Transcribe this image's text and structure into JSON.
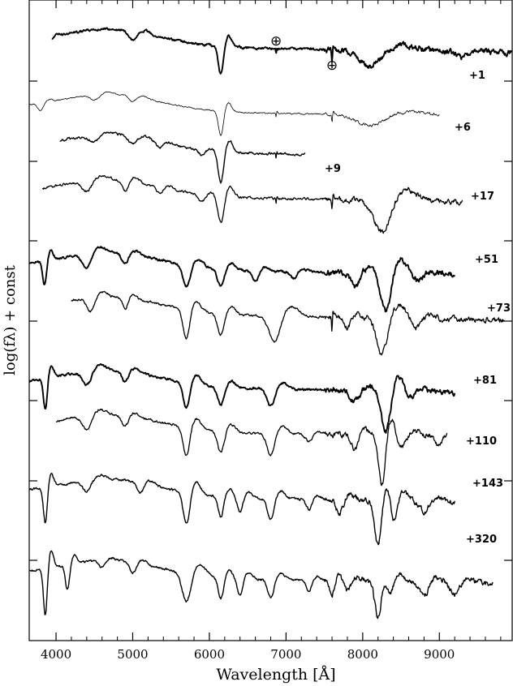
{
  "chart_data": {
    "type": "line",
    "xlabel": "Wavelength [Å]",
    "ylabel": "log(fλ) + const",
    "xlim": [
      3650,
      9950
    ],
    "x_ticks": [
      4000,
      5000,
      6000,
      7000,
      8000,
      9000
    ],
    "y_ticks_count": 7,
    "telluric_marks": [
      {
        "symbol": "⊕",
        "x": 6870
      },
      {
        "symbol": "⊕",
        "x": 7600
      }
    ],
    "series": [
      {
        "name": "+1",
        "xrange": [
          3950,
          9950
        ],
        "offset": 0,
        "lines": [
          [
            6150,
            45,
            160
          ],
          [
            6870,
            6,
            25
          ],
          [
            7600,
            8,
            60
          ],
          [
            3933,
            40,
            20
          ],
          [
            5000,
            70,
            50
          ],
          [
            8100,
            200,
            90
          ],
          [
            9300,
            100,
            30
          ]
        ]
      },
      {
        "name": "+6",
        "xrange": [
          3650,
          9000
        ],
        "offset": 0,
        "lines": [
          [
            6150,
            45,
            140
          ],
          [
            6870,
            6,
            25
          ],
          [
            7600,
            8,
            50
          ],
          [
            3800,
            50,
            40
          ],
          [
            4500,
            80,
            30
          ],
          [
            5000,
            60,
            30
          ],
          [
            8100,
            250,
            60
          ]
        ]
      },
      {
        "name": "+9",
        "xrange": [
          4050,
          7250
        ],
        "offset": 0,
        "lines": [
          [
            6150,
            50,
            180
          ],
          [
            4500,
            90,
            40
          ],
          [
            5000,
            70,
            40
          ],
          [
            5350,
            60,
            30
          ],
          [
            5900,
            60,
            30
          ],
          [
            6870,
            6,
            30
          ]
        ]
      },
      {
        "name": "+17",
        "xrange": [
          3820,
          9300
        ],
        "offset": 0,
        "lines": [
          [
            6150,
            55,
            150
          ],
          [
            4400,
            90,
            60
          ],
          [
            4900,
            60,
            60
          ],
          [
            5350,
            60,
            40
          ],
          [
            5900,
            60,
            40
          ],
          [
            6870,
            6,
            30
          ],
          [
            7600,
            8,
            60
          ],
          [
            8250,
            150,
            180
          ]
        ]
      },
      {
        "name": "+51",
        "xrange": [
          3650,
          9200
        ],
        "offset": 0,
        "lines": [
          [
            3850,
            35,
            140
          ],
          [
            4400,
            80,
            80
          ],
          [
            4900,
            60,
            60
          ],
          [
            5700,
            70,
            120
          ],
          [
            6150,
            60,
            100
          ],
          [
            6600,
            60,
            60
          ],
          [
            7100,
            60,
            40
          ],
          [
            7900,
            80,
            80
          ],
          [
            8300,
            90,
            220
          ],
          [
            8700,
            100,
            40
          ]
        ]
      },
      {
        "name": "+73",
        "xrange": [
          4200,
          9850
        ],
        "offset": 0,
        "lines": [
          [
            4450,
            70,
            80
          ],
          [
            4900,
            50,
            60
          ],
          [
            5700,
            60,
            160
          ],
          [
            6150,
            60,
            120
          ],
          [
            6850,
            100,
            150
          ],
          [
            7600,
            6,
            80
          ],
          [
            7800,
            60,
            60
          ],
          [
            8250,
            100,
            200
          ],
          [
            8700,
            80,
            60
          ]
        ]
      },
      {
        "name": "+81",
        "xrange": [
          3650,
          9200
        ],
        "offset": 0,
        "lines": [
          [
            3860,
            35,
            180
          ],
          [
            4400,
            80,
            80
          ],
          [
            4900,
            60,
            60
          ],
          [
            5700,
            60,
            140
          ],
          [
            6150,
            60,
            100
          ],
          [
            6800,
            70,
            100
          ],
          [
            7900,
            80,
            60
          ],
          [
            8300,
            80,
            240
          ],
          [
            8600,
            80,
            60
          ]
        ]
      },
      {
        "name": "+110",
        "xrange": [
          4000,
          9100
        ],
        "offset": 0,
        "lines": [
          [
            4400,
            80,
            80
          ],
          [
            4900,
            60,
            60
          ],
          [
            5700,
            60,
            160
          ],
          [
            6150,
            60,
            120
          ],
          [
            6800,
            70,
            120
          ],
          [
            7300,
            60,
            40
          ],
          [
            7900,
            60,
            80
          ],
          [
            8250,
            60,
            280
          ],
          [
            8500,
            80,
            80
          ],
          [
            9000,
            60,
            60
          ]
        ]
      },
      {
        "name": "+143",
        "xrange": [
          3650,
          9200
        ],
        "offset": 0,
        "lines": [
          [
            3860,
            35,
            200
          ],
          [
            4400,
            80,
            60
          ],
          [
            5100,
            60,
            60
          ],
          [
            5700,
            60,
            180
          ],
          [
            6150,
            50,
            120
          ],
          [
            6400,
            50,
            80
          ],
          [
            6800,
            60,
            120
          ],
          [
            7300,
            50,
            60
          ],
          [
            7700,
            60,
            80
          ],
          [
            8200,
            60,
            260
          ],
          [
            8400,
            60,
            160
          ],
          [
            8800,
            80,
            60
          ]
        ]
      },
      {
        "name": "+320",
        "xrange": [
          3650,
          9700
        ],
        "offset": 0,
        "lines": [
          [
            3860,
            35,
            260
          ],
          [
            4150,
            40,
            140
          ],
          [
            4600,
            60,
            40
          ],
          [
            5000,
            60,
            60
          ],
          [
            5700,
            80,
            160
          ],
          [
            6150,
            50,
            120
          ],
          [
            6400,
            50,
            100
          ],
          [
            6800,
            60,
            100
          ],
          [
            7300,
            50,
            60
          ],
          [
            7600,
            40,
            80
          ],
          [
            7800,
            60,
            60
          ],
          [
            8200,
            60,
            200
          ],
          [
            8350,
            60,
            140
          ],
          [
            8800,
            80,
            80
          ],
          [
            9200,
            80,
            60
          ]
        ]
      }
    ]
  }
}
